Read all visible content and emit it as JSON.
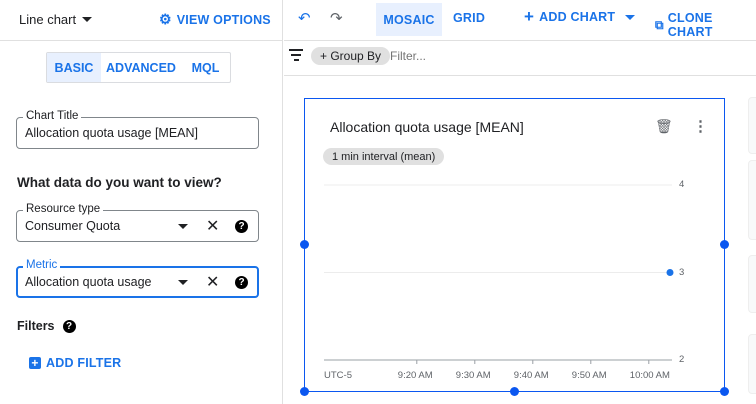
{
  "left_panel": {
    "chart_type": "Line chart",
    "view_options": "VIEW OPTIONS",
    "tabs": [
      {
        "label": "BASIC",
        "active": true
      },
      {
        "label": "ADVANCED",
        "active": false
      },
      {
        "label": "MQL",
        "active": false
      }
    ],
    "chart_title": {
      "label": "Chart Title",
      "value": "Allocation quota usage [MEAN]"
    },
    "section_heading": "What data do you want to view?",
    "resource_type": {
      "label": "Resource type",
      "value": "Consumer Quota"
    },
    "metric": {
      "label": "Metric",
      "value": "Allocation quota usage"
    },
    "filters_label": "Filters",
    "add_filter": "ADD FILTER"
  },
  "toolbar": {
    "mosaic": "MOSAIC",
    "grid": "GRID",
    "add_chart": "ADD CHART",
    "clone_chart": "CLONE CHART",
    "active_layout": "MOSAIC"
  },
  "filter_bar": {
    "group_by": "+ Group By",
    "placeholder": "Filter..."
  },
  "chart_card": {
    "title": "Allocation quota usage [MEAN]",
    "interval_chip": "1 min interval (mean)"
  },
  "colors": {
    "accent": "#1a73e8",
    "selection": "#0b57f0",
    "series": "#1a73e8"
  },
  "chart_data": {
    "type": "line",
    "timezone_label": "UTC-5",
    "x_ticks": [
      "9:20 AM",
      "9:30 AM",
      "9:40 AM",
      "9:50 AM",
      "10:00 AM"
    ],
    "y_ticks": [
      2,
      3,
      4
    ],
    "ylim": [
      2,
      4
    ],
    "xlim": [
      "9:04 AM",
      "10:04 AM"
    ],
    "series": [
      {
        "points": [
          {
            "x": "10:04 AM",
            "y": 3
          }
        ]
      }
    ],
    "grid": true
  }
}
